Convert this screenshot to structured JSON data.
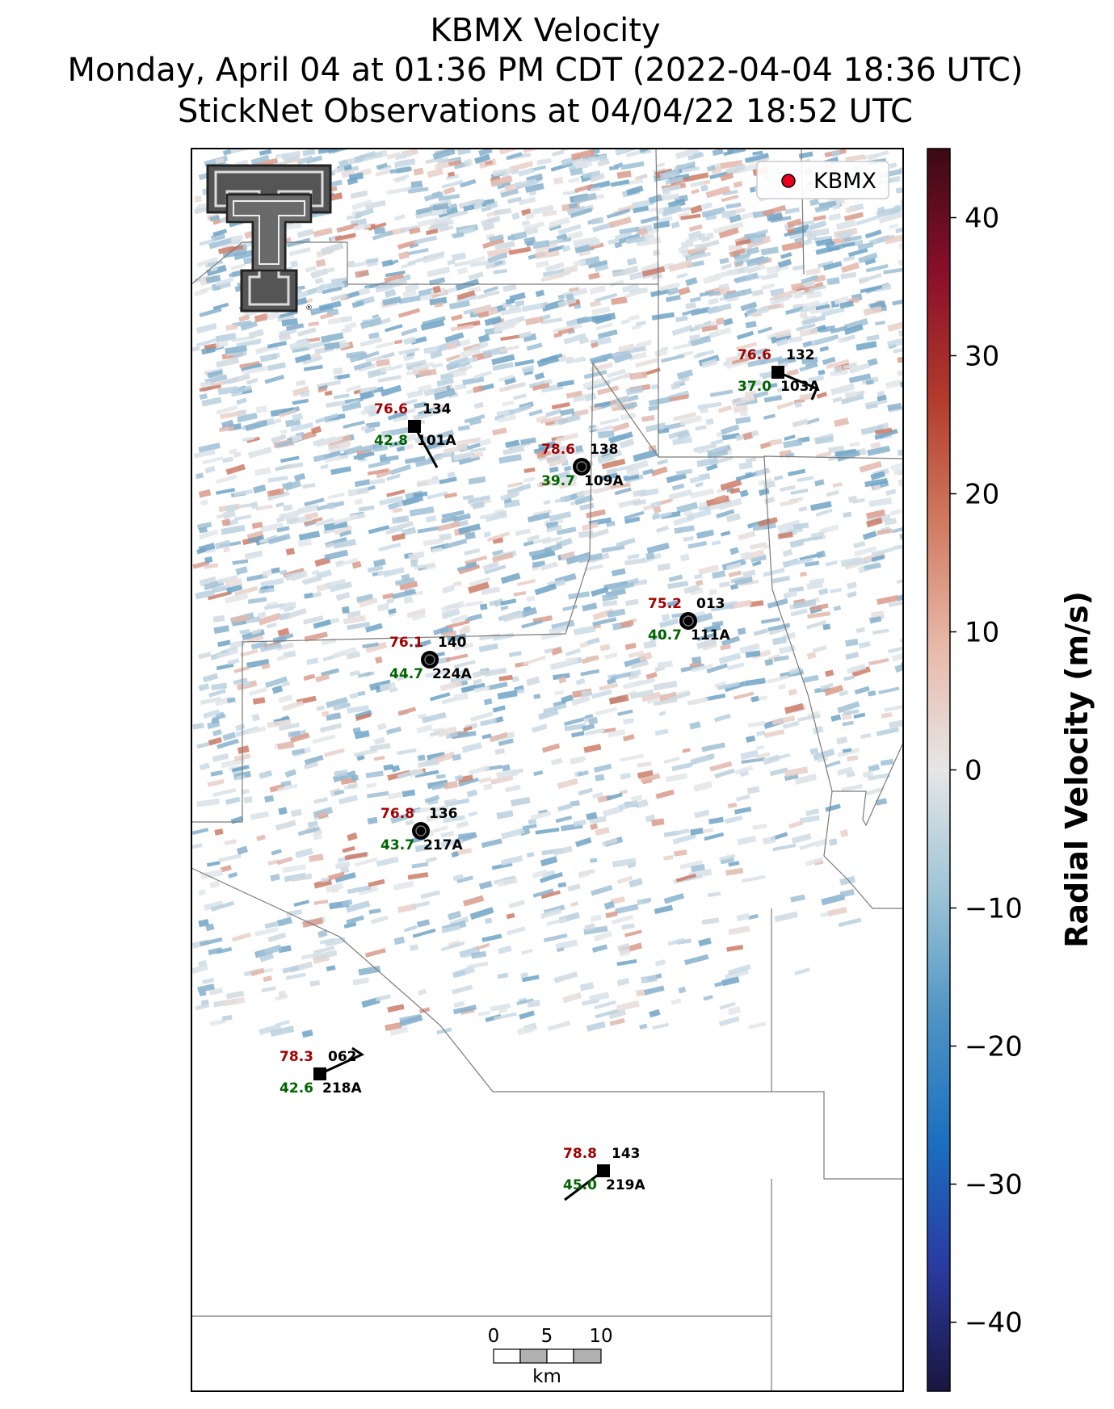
{
  "title": {
    "line1": "KBMX Velocity",
    "line2": "Monday, April 04 at 01:36 PM CDT (2022-04-04 18:36 UTC)",
    "line3": "StickNet Observations at 04/04/22 18:52 UTC"
  },
  "legend": {
    "label": "KBMX",
    "marker_color": "#e8001c",
    "placement": "top-right"
  },
  "colorbar": {
    "label": "Radial Velocity (m/s)",
    "ticks": [
      "40",
      "30",
      "20",
      "10",
      "0",
      "−10",
      "−20",
      "−30",
      "−40"
    ],
    "range": [
      -45,
      45
    ],
    "colors": [
      "#1a1640",
      "#2a3aa0",
      "#1b6fc0",
      "#4d93c4",
      "#9dc3d6",
      "#e6e6e6",
      "#e8b8a8",
      "#d07a60",
      "#b23a2c",
      "#8a0f2a",
      "#3c0a14"
    ]
  },
  "stations": [
    {
      "temp": "76.6",
      "dew": "42.8",
      "code": "134",
      "id": "101A",
      "marker": "square"
    },
    {
      "temp": "78.6",
      "dew": "39.7",
      "code": "138",
      "id": "109A",
      "marker": "circle"
    },
    {
      "temp": "76.6",
      "dew": "37.0",
      "code": "132",
      "id": "103A",
      "marker": "square"
    },
    {
      "temp": "75.2",
      "dew": "40.7",
      "code": "013",
      "id": "111A",
      "marker": "circle"
    },
    {
      "temp": "76.1",
      "dew": "44.7",
      "code": "140",
      "id": "224A",
      "marker": "circle"
    },
    {
      "temp": "76.8",
      "dew": "43.7",
      "code": "136",
      "id": "217A",
      "marker": "circle"
    },
    {
      "temp": "78.3",
      "dew": "42.6",
      "code": "062",
      "id": "218A",
      "marker": "square"
    },
    {
      "temp": "78.8",
      "dew": "45.0",
      "code": "143",
      "id": "219A",
      "marker": "square"
    }
  ],
  "scale_bar": {
    "unit": "km",
    "labels": [
      "0",
      "5",
      "10"
    ]
  },
  "logo": {
    "name": "texas-tech-double-t-logo",
    "mark": "®"
  }
}
